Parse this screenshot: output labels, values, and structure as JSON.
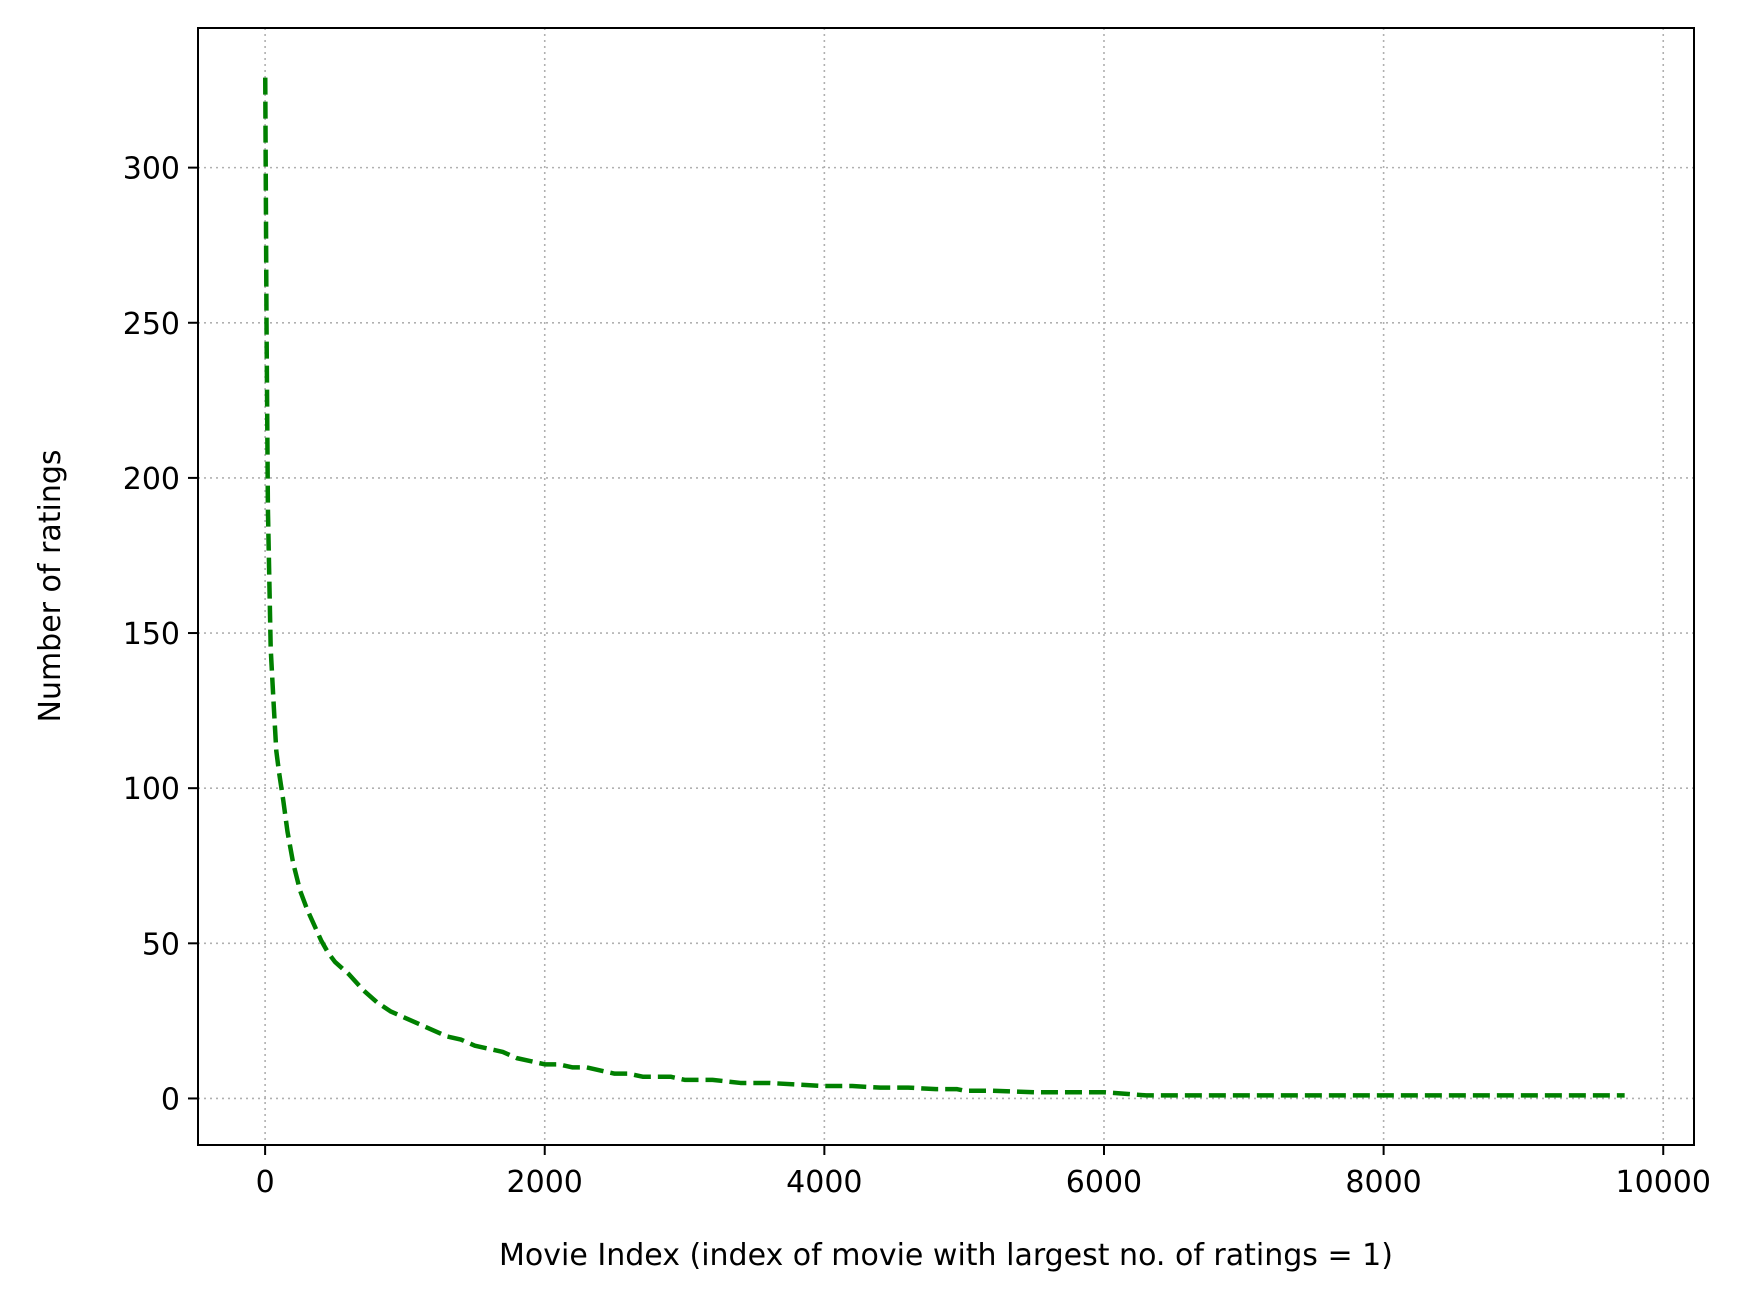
{
  "chart_data": {
    "type": "line",
    "title": "",
    "xlabel": "Movie Index (index of movie with largest no. of ratings = 1)",
    "ylabel": "Number of ratings",
    "xlim": [
      -480,
      10220
    ],
    "ylim": [
      -15,
      345
    ],
    "xticks": [
      0,
      2000,
      4000,
      6000,
      8000,
      10000
    ],
    "yticks": [
      0,
      50,
      100,
      150,
      200,
      250,
      300
    ],
    "grid": true,
    "legend": "none",
    "series": [
      {
        "color": "#008000",
        "line_style": "dashed",
        "x": [
          1,
          10,
          20,
          40,
          60,
          80,
          100,
          130,
          160,
          200,
          250,
          300,
          350,
          400,
          450,
          500,
          600,
          700,
          800,
          900,
          1000,
          1100,
          1200,
          1300,
          1400,
          1500,
          1600,
          1700,
          1800,
          1900,
          2000,
          2100,
          2200,
          2300,
          2400,
          2500,
          2600,
          2700,
          2800,
          2900,
          3000,
          3200,
          3400,
          3600,
          3800,
          4000,
          4200,
          4400,
          4600,
          4800,
          4950,
          5000,
          5200,
          5500,
          6000,
          6300,
          7000,
          8000,
          9000,
          9724
        ],
        "y": [
          329,
          250,
          190,
          145,
          128,
          112,
          105,
          96,
          86,
          76,
          67,
          61,
          56,
          51,
          47,
          44,
          40,
          35,
          31,
          28,
          26,
          24,
          22,
          20,
          19,
          17,
          16,
          15,
          13,
          12,
          11,
          11,
          10,
          10,
          9,
          8,
          8,
          7,
          7,
          7,
          6,
          6,
          5,
          5,
          4.5,
          4,
          4,
          3.5,
          3.5,
          3,
          3,
          2.5,
          2.5,
          2,
          2,
          1,
          1,
          1,
          1,
          1
        ]
      }
    ]
  }
}
